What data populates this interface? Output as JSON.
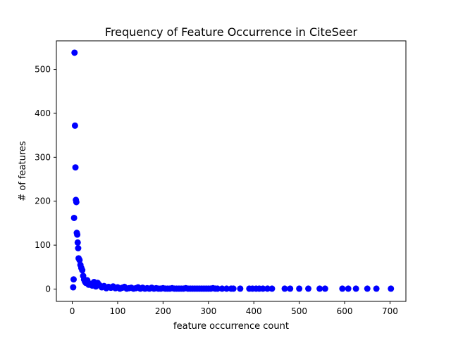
{
  "chart_data": {
    "type": "scatter",
    "title": "Frequency of Feature Occurrence in CiteSeer",
    "xlabel": "feature occurrence count",
    "ylabel": "# of features",
    "xlim": [
      -35,
      735
    ],
    "ylim": [
      -28,
      565
    ],
    "xticks": [
      0,
      100,
      200,
      300,
      400,
      500,
      600,
      700
    ],
    "yticks": [
      0,
      100,
      200,
      300,
      400,
      500
    ],
    "grid": false,
    "marker_color": "#0000ff",
    "series": [
      {
        "points": [
          [
            2,
            4
          ],
          [
            3,
            22
          ],
          [
            4,
            162
          ],
          [
            5,
            538
          ],
          [
            6,
            372
          ],
          [
            7,
            277
          ],
          [
            8,
            203
          ],
          [
            9,
            198
          ],
          [
            10,
            128
          ],
          [
            11,
            124
          ],
          [
            12,
            106
          ],
          [
            13,
            93
          ],
          [
            14,
            70
          ],
          [
            16,
            66
          ],
          [
            18,
            55
          ],
          [
            20,
            48
          ],
          [
            22,
            43
          ],
          [
            24,
            30
          ],
          [
            26,
            22
          ],
          [
            28,
            17
          ],
          [
            30,
            14
          ],
          [
            33,
            20
          ],
          [
            36,
            10
          ],
          [
            40,
            12
          ],
          [
            44,
            8
          ],
          [
            48,
            16
          ],
          [
            52,
            6
          ],
          [
            56,
            14
          ],
          [
            60,
            9
          ],
          [
            65,
            4
          ],
          [
            70,
            7
          ],
          [
            75,
            2
          ],
          [
            80,
            5
          ],
          [
            85,
            3
          ],
          [
            90,
            6
          ],
          [
            95,
            2
          ],
          [
            100,
            4
          ],
          [
            105,
            1
          ],
          [
            110,
            3
          ],
          [
            115,
            5
          ],
          [
            120,
            1
          ],
          [
            125,
            2
          ],
          [
            130,
            3
          ],
          [
            135,
            1
          ],
          [
            140,
            2
          ],
          [
            145,
            4
          ],
          [
            150,
            1
          ],
          [
            155,
            3
          ],
          [
            160,
            1
          ],
          [
            165,
            2
          ],
          [
            170,
            1
          ],
          [
            175,
            3
          ],
          [
            180,
            1
          ],
          [
            185,
            2
          ],
          [
            190,
            1
          ],
          [
            195,
            1
          ],
          [
            200,
            2
          ],
          [
            205,
            1
          ],
          [
            210,
            1
          ],
          [
            215,
            1
          ],
          [
            220,
            2
          ],
          [
            225,
            1
          ],
          [
            230,
            1
          ],
          [
            235,
            1
          ],
          [
            240,
            1
          ],
          [
            245,
            1
          ],
          [
            250,
            2
          ],
          [
            255,
            1
          ],
          [
            260,
            1
          ],
          [
            265,
            1
          ],
          [
            270,
            1
          ],
          [
            275,
            1
          ],
          [
            280,
            1
          ],
          [
            285,
            1
          ],
          [
            290,
            1
          ],
          [
            295,
            1
          ],
          [
            300,
            1
          ],
          [
            305,
            1
          ],
          [
            310,
            2
          ],
          [
            315,
            1
          ],
          [
            320,
            1
          ],
          [
            330,
            1
          ],
          [
            340,
            1
          ],
          [
            350,
            1
          ],
          [
            355,
            1
          ],
          [
            370,
            1
          ],
          [
            390,
            1
          ],
          [
            397,
            1
          ],
          [
            405,
            1
          ],
          [
            412,
            1
          ],
          [
            420,
            1
          ],
          [
            430,
            1
          ],
          [
            440,
            1
          ],
          [
            468,
            1
          ],
          [
            480,
            1
          ],
          [
            500,
            1
          ],
          [
            520,
            1
          ],
          [
            545,
            1
          ],
          [
            557,
            1
          ],
          [
            595,
            1
          ],
          [
            608,
            1
          ],
          [
            625,
            1
          ],
          [
            650,
            1
          ],
          [
            670,
            1
          ],
          [
            702,
            1
          ]
        ]
      }
    ]
  }
}
